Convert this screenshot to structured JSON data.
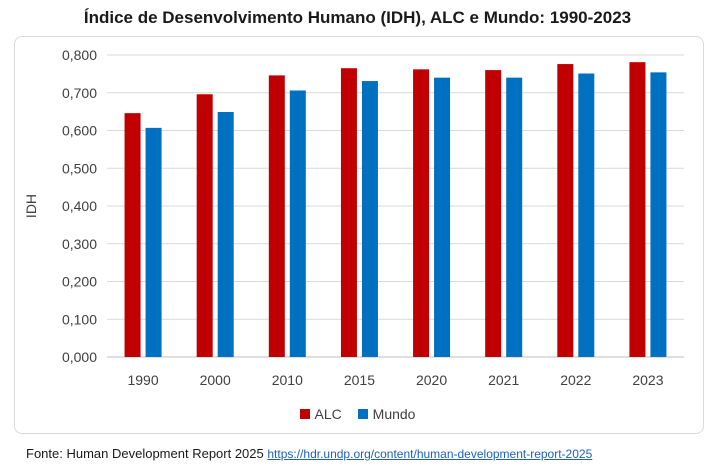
{
  "chart_data": {
    "type": "bar",
    "title": "Índice de Desenvolvimento Humano (IDH), ALC e Mundo: 1990-2023",
    "xlabel": "",
    "ylabel": "IDH",
    "categories": [
      "1990",
      "2000",
      "2010",
      "2015",
      "2020",
      "2021",
      "2022",
      "2023"
    ],
    "series": [
      {
        "name": "ALC",
        "color": "#c00000",
        "values": [
          0.646,
          0.696,
          0.746,
          0.765,
          0.762,
          0.76,
          0.776,
          0.781
        ]
      },
      {
        "name": "Mundo",
        "color": "#0070c0",
        "values": [
          0.607,
          0.649,
          0.706,
          0.731,
          0.74,
          0.74,
          0.751,
          0.754
        ]
      }
    ],
    "ylim": [
      0,
      0.8
    ],
    "yticks": [
      "0,000",
      "0,100",
      "0,200",
      "0,300",
      "0,400",
      "0,500",
      "0,600",
      "0,700",
      "0,800"
    ],
    "grid": true,
    "legend_position": "bottom"
  },
  "footer": {
    "source_label": "Fonte: Human Development Report 2025",
    "source_link": "https://hdr.undp.org/content/human-development-report-2025"
  }
}
